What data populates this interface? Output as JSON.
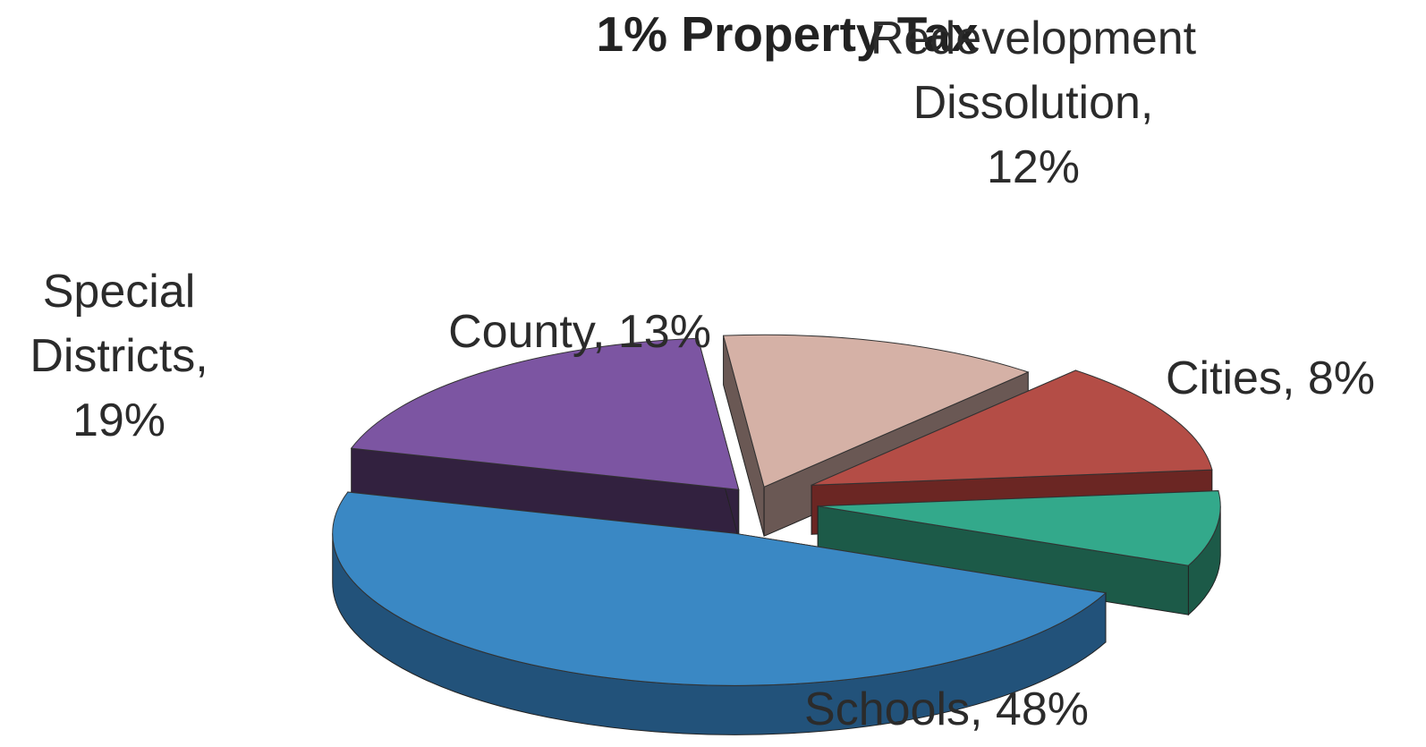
{
  "chart_data": {
    "type": "pie",
    "title": "1% Property Tax",
    "legend": "none",
    "style": "3d-exploded",
    "slices": [
      {
        "name": "Schools",
        "label_lines": [
          "Schools, 48%"
        ],
        "value": 48,
        "color": "#3a88c4",
        "side_color": "#22527a"
      },
      {
        "name": "Special Districts",
        "label_lines": [
          "Special",
          "Districts,",
          "19%"
        ],
        "value": 19,
        "color": "#7c55a2",
        "side_color": "#32213f"
      },
      {
        "name": "County",
        "label_lines": [
          "County, 13%"
        ],
        "value": 13,
        "color": "#d5b1a6",
        "side_color": "#6a5854"
      },
      {
        "name": "Redevelopment Dissolution",
        "label_lines": [
          "Redevelopment",
          "Dissolution,",
          "12%"
        ],
        "value": 12,
        "color": "#b44d46",
        "side_color": "#6b2623"
      },
      {
        "name": "Cities",
        "label_lines": [
          "Cities, 8%"
        ],
        "value": 8,
        "color": "#33a98b",
        "side_color": "#1c5a48"
      }
    ]
  }
}
